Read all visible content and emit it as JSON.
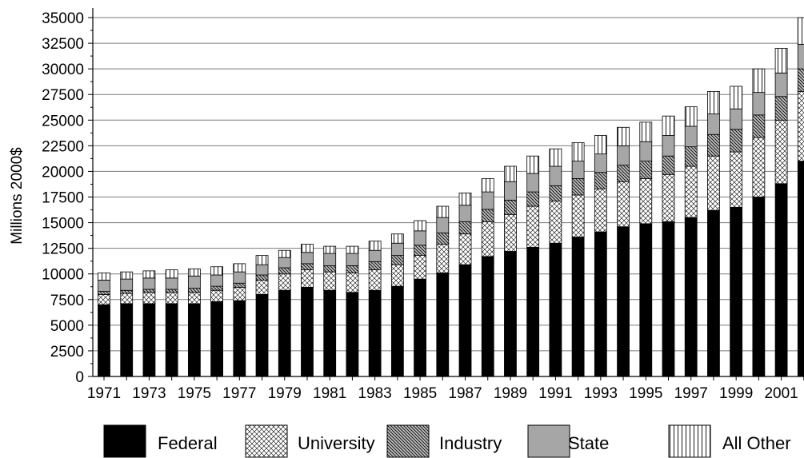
{
  "chart_data": {
    "type": "bar",
    "stacked": true,
    "title": "",
    "xlabel": "",
    "ylabel": "Millions 2000$",
    "ylim": [
      0,
      35000
    ],
    "yticks": [
      "0",
      "2500",
      "5000",
      "7500",
      "10000",
      "12500",
      "15000",
      "17500",
      "20000",
      "22500",
      "25000",
      "27500",
      "30000",
      "32500",
      "35000"
    ],
    "grid": true,
    "legend_position": "bottom",
    "categories": [
      1971,
      1972,
      1973,
      1974,
      1975,
      1976,
      1977,
      1978,
      1979,
      1980,
      1981,
      1982,
      1983,
      1984,
      1985,
      1986,
      1987,
      1988,
      1989,
      1990,
      1991,
      1992,
      1993,
      1994,
      1995,
      1996,
      1997,
      1998,
      1999,
      2000,
      2001,
      2002
    ],
    "x_tick_labels": [
      "1971",
      "1973",
      "1975",
      "1977",
      "1979",
      "1981",
      "1983",
      "1985",
      "1987",
      "1989",
      "1991",
      "1993",
      "1995",
      "1997",
      "1999",
      "2001"
    ],
    "series": [
      {
        "name": "Federal",
        "pattern": "solid-black",
        "values": [
          7000,
          7100,
          7100,
          7100,
          7100,
          7300,
          7400,
          8000,
          8400,
          8700,
          8400,
          8200,
          8400,
          8800,
          9500,
          10100,
          10900,
          11700,
          12200,
          12600,
          13000,
          13600,
          14100,
          14600,
          14900,
          15100,
          15500,
          16200,
          16500,
          17500,
          18800,
          21000
        ]
      },
      {
        "name": "University",
        "pattern": "crosshatch",
        "values": [
          1000,
          1000,
          1100,
          1100,
          1100,
          1100,
          1300,
          1400,
          1600,
          1700,
          1800,
          1900,
          2000,
          2100,
          2300,
          2800,
          3000,
          3400,
          3600,
          4000,
          4100,
          4100,
          4200,
          4400,
          4400,
          4600,
          5000,
          5300,
          5400,
          5800,
          6200,
          6800
        ]
      },
      {
        "name": "Industry",
        "pattern": "diagonal",
        "values": [
          300,
          300,
          300,
          300,
          400,
          400,
          400,
          500,
          600,
          600,
          600,
          700,
          800,
          900,
          1000,
          1100,
          1200,
          1200,
          1400,
          1400,
          1500,
          1600,
          1600,
          1600,
          1700,
          1800,
          1900,
          2100,
          2200,
          2200,
          2300,
          2200
        ]
      },
      {
        "name": "State",
        "pattern": "solid-gray",
        "values": [
          1100,
          1100,
          1100,
          1100,
          1200,
          1100,
          1100,
          1000,
          1000,
          1100,
          1200,
          1200,
          1100,
          1200,
          1400,
          1500,
          1600,
          1700,
          1800,
          1800,
          1900,
          1700,
          1800,
          1900,
          1900,
          2000,
          2000,
          2000,
          2000,
          2200,
          2300,
          2400
        ]
      },
      {
        "name": "All Other",
        "pattern": "vertical-lines",
        "values": [
          700,
          700,
          700,
          800,
          700,
          800,
          800,
          900,
          700,
          800,
          700,
          700,
          900,
          900,
          1000,
          1100,
          1200,
          1300,
          1500,
          1700,
          1700,
          1800,
          1800,
          1800,
          1900,
          1900,
          1900,
          2200,
          2200,
          2300,
          2400,
          2600
        ]
      }
    ]
  }
}
